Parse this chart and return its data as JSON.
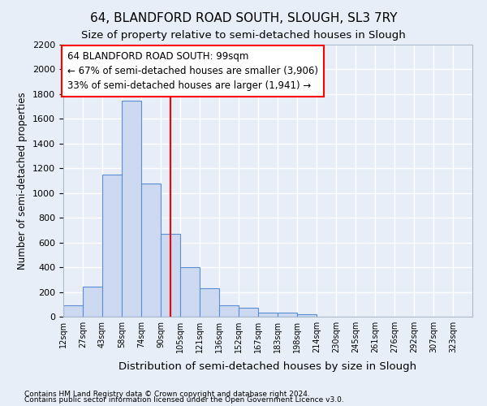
{
  "title": "64, BLANDFORD ROAD SOUTH, SLOUGH, SL3 7RY",
  "subtitle": "Size of property relative to semi-detached houses in Slough",
  "xlabel": "Distribution of semi-detached houses by size in Slough",
  "ylabel": "Number of semi-detached properties",
  "footnote1": "Contains HM Land Registry data © Crown copyright and database right 2024.",
  "footnote2": "Contains public sector information licensed under the Open Government Licence v3.0.",
  "annotation_title": "64 BLANDFORD ROAD SOUTH: 99sqm",
  "annotation_line1": "← 67% of semi-detached houses are smaller (3,906)",
  "annotation_line2": "33% of semi-detached houses are larger (1,941) →",
  "bar_color": "#ccd9f0",
  "bar_edge_color": "#5b8ed6",
  "bar_labels": [
    "12sqm",
    "27sqm",
    "43sqm",
    "58sqm",
    "74sqm",
    "90sqm",
    "105sqm",
    "121sqm",
    "136sqm",
    "152sqm",
    "167sqm",
    "183sqm",
    "198sqm",
    "214sqm",
    "230sqm",
    "245sqm",
    "261sqm",
    "276sqm",
    "292sqm",
    "307sqm",
    "323sqm"
  ],
  "bar_values": [
    90,
    240,
    1150,
    1750,
    1080,
    670,
    400,
    230,
    90,
    70,
    35,
    30,
    20,
    0,
    0,
    0,
    0,
    0,
    0,
    0,
    0
  ],
  "vline_position": 5.5,
  "ylim": [
    0,
    2200
  ],
  "yticks": [
    0,
    200,
    400,
    600,
    800,
    1000,
    1200,
    1400,
    1600,
    1800,
    2000,
    2200
  ],
  "background_color": "#e8eef8",
  "grid_color": "#ffffff",
  "title_fontsize": 11,
  "subtitle_fontsize": 9.5
}
